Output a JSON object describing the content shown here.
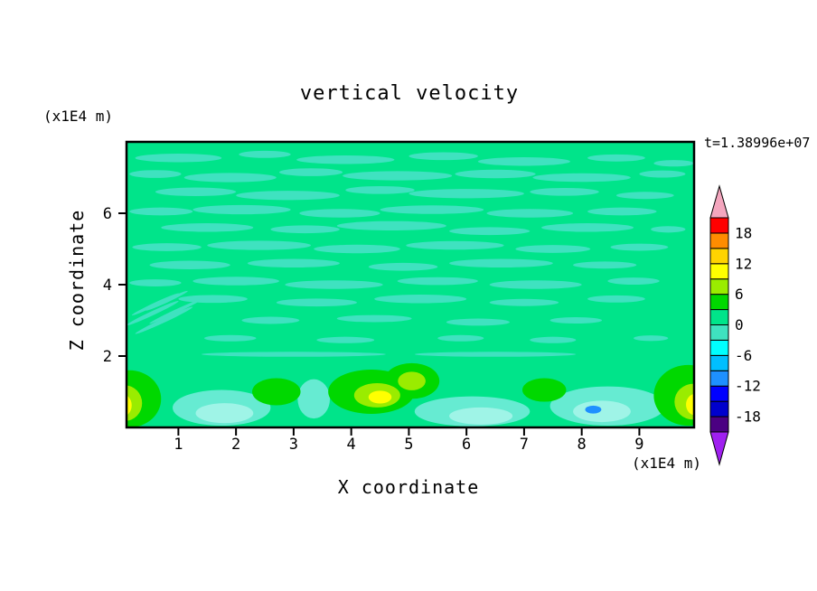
{
  "page": {
    "background_color": "#FFFFFF"
  },
  "chart_data": {
    "type": "contour",
    "title": "vertical velocity",
    "time_annotation": "t=1.38996e+07",
    "x": {
      "label": "X coordinate",
      "unit": "(x1E4 m)",
      "range": [
        0.1,
        9.95
      ],
      "ticks": [
        1,
        2,
        3,
        4,
        5,
        6,
        7,
        8,
        9
      ]
    },
    "z": {
      "label": "Z coordinate",
      "unit": "(x1E4 m)",
      "range": [
        0,
        8
      ],
      "ticks": [
        2,
        4,
        6
      ]
    },
    "grid": false,
    "legend_position": "right-colorbar",
    "levels": [
      -21,
      -18,
      -15,
      -12,
      -9,
      -6,
      -3,
      0,
      3,
      6,
      9,
      12,
      15,
      18,
      21
    ],
    "band_colors_bottom_to_top": [
      "#4B0082",
      "#0000CD",
      "#0000FF",
      "#1E90FF",
      "#00BFFF",
      "#00FFFF",
      "#3FE2C0",
      "#00E48A",
      "#00D800",
      "#9AEC00",
      "#FFFF00",
      "#FFD300",
      "#FF8C00",
      "#FF0000"
    ],
    "under_arrow_color": "#A020F0",
    "over_arrow_color": "#F4A6BE",
    "colorbar_tick_labels": [
      "18",
      "12",
      "6",
      "0",
      "-6",
      "-12",
      "-18"
    ],
    "background_band": {
      "value_range": [
        0,
        3
      ],
      "color": "#00E48A"
    },
    "streak_band": {
      "value_range": [
        -3,
        0
      ],
      "color": "#3FE2C0"
    },
    "field_summary": "Interior (z from about 2 to 8) dominated by values in the 0-3 band with thin -3-0 turquoise streaks; boundary layer below z of about 2 contains updraft cores reaching the 9-12 yellow band near x of 0, 4.5, 5.0 and 10, and downdraft patches reaching about -6 to -9 (cyan / blue spot) near x of 1.8, 6.2 and 8.2",
    "streaks": [
      [
        1.0,
        7.55,
        0.75,
        0.12
      ],
      [
        2.5,
        7.65,
        0.45,
        0.1
      ],
      [
        3.9,
        7.5,
        0.85,
        0.12
      ],
      [
        5.6,
        7.6,
        0.6,
        0.11
      ],
      [
        7.0,
        7.45,
        0.8,
        0.12
      ],
      [
        8.6,
        7.55,
        0.5,
        0.1
      ],
      [
        9.6,
        7.4,
        0.35,
        0.09
      ],
      [
        0.6,
        7.1,
        0.45,
        0.11
      ],
      [
        1.9,
        7.0,
        0.8,
        0.13
      ],
      [
        3.3,
        7.15,
        0.55,
        0.11
      ],
      [
        4.8,
        7.05,
        0.95,
        0.13
      ],
      [
        6.5,
        7.1,
        0.7,
        0.12
      ],
      [
        8.0,
        7.0,
        0.85,
        0.12
      ],
      [
        9.4,
        7.1,
        0.4,
        0.1
      ],
      [
        1.3,
        6.6,
        0.7,
        0.12
      ],
      [
        2.9,
        6.5,
        0.9,
        0.13
      ],
      [
        4.5,
        6.65,
        0.6,
        0.11
      ],
      [
        6.0,
        6.55,
        1.0,
        0.13
      ],
      [
        7.7,
        6.6,
        0.6,
        0.11
      ],
      [
        9.1,
        6.5,
        0.5,
        0.1
      ],
      [
        0.7,
        6.05,
        0.55,
        0.11
      ],
      [
        2.1,
        6.1,
        0.85,
        0.13
      ],
      [
        3.8,
        6.0,
        0.7,
        0.12
      ],
      [
        5.4,
        6.1,
        0.9,
        0.12
      ],
      [
        7.1,
        6.0,
        0.75,
        0.12
      ],
      [
        8.7,
        6.05,
        0.6,
        0.11
      ],
      [
        1.5,
        5.6,
        0.8,
        0.12
      ],
      [
        3.2,
        5.55,
        0.6,
        0.11
      ],
      [
        4.7,
        5.65,
        0.95,
        0.13
      ],
      [
        6.4,
        5.5,
        0.7,
        0.11
      ],
      [
        8.1,
        5.6,
        0.8,
        0.12
      ],
      [
        9.5,
        5.55,
        0.3,
        0.09
      ],
      [
        0.8,
        5.05,
        0.6,
        0.11
      ],
      [
        2.4,
        5.1,
        0.9,
        0.13
      ],
      [
        4.1,
        5.0,
        0.75,
        0.12
      ],
      [
        5.8,
        5.1,
        0.85,
        0.12
      ],
      [
        7.5,
        5.0,
        0.65,
        0.11
      ],
      [
        9.0,
        5.05,
        0.5,
        0.1
      ],
      [
        1.2,
        4.55,
        0.7,
        0.12
      ],
      [
        3.0,
        4.6,
        0.8,
        0.12
      ],
      [
        4.9,
        4.5,
        0.6,
        0.11
      ],
      [
        6.6,
        4.6,
        0.9,
        0.12
      ],
      [
        8.4,
        4.55,
        0.55,
        0.1
      ],
      [
        0.6,
        4.05,
        0.45,
        0.1
      ],
      [
        2.0,
        4.1,
        0.75,
        0.12
      ],
      [
        3.7,
        4.0,
        0.85,
        0.12
      ],
      [
        5.5,
        4.1,
        0.7,
        0.11
      ],
      [
        7.2,
        4.0,
        0.8,
        0.12
      ],
      [
        8.9,
        4.1,
        0.45,
        0.1
      ],
      [
        1.6,
        3.6,
        0.6,
        0.11
      ],
      [
        3.4,
        3.5,
        0.7,
        0.11
      ],
      [
        5.2,
        3.6,
        0.8,
        0.12
      ],
      [
        7.0,
        3.5,
        0.6,
        0.1
      ],
      [
        8.6,
        3.6,
        0.5,
        0.1
      ],
      [
        2.6,
        3.0,
        0.5,
        0.1
      ],
      [
        4.4,
        3.05,
        0.65,
        0.1
      ],
      [
        6.2,
        2.95,
        0.55,
        0.1
      ],
      [
        7.9,
        3.0,
        0.45,
        0.09
      ],
      [
        1.9,
        2.5,
        0.45,
        0.09
      ],
      [
        3.9,
        2.45,
        0.5,
        0.09
      ],
      [
        5.9,
        2.5,
        0.4,
        0.09
      ],
      [
        7.5,
        2.45,
        0.4,
        0.09
      ],
      [
        9.2,
        2.5,
        0.3,
        0.08
      ],
      [
        3.0,
        2.05,
        1.6,
        0.07
      ],
      [
        6.5,
        2.05,
        1.4,
        0.07
      ],
      [
        0.55,
        3.2,
        0.5,
        0.06,
        -25
      ],
      [
        0.75,
        3.0,
        0.55,
        0.06,
        -25
      ],
      [
        0.6,
        3.45,
        0.45,
        0.05,
        -25
      ],
      [
        0.95,
        3.25,
        0.5,
        0.05,
        -25
      ],
      [
        0.8,
        3.55,
        0.4,
        0.05,
        -25
      ]
    ],
    "features": [
      {
        "x": 1.75,
        "z": 0.55,
        "rx": 0.85,
        "rz": 0.5,
        "color": "#66EBD2",
        "band": [
          -3,
          0
        ]
      },
      {
        "x": 3.35,
        "z": 0.8,
        "rx": 0.28,
        "rz": 0.55,
        "color": "#66EBD2",
        "band": [
          -3,
          0
        ]
      },
      {
        "x": 6.1,
        "z": 0.45,
        "rx": 1.0,
        "rz": 0.42,
        "color": "#66EBD2",
        "band": [
          -3,
          0
        ]
      },
      {
        "x": 8.45,
        "z": 0.6,
        "rx": 1.0,
        "rz": 0.55,
        "color": "#66EBD2",
        "band": [
          -3,
          0
        ]
      },
      {
        "x": 1.8,
        "z": 0.4,
        "rx": 0.5,
        "rz": 0.28,
        "color": "#9FF4E7",
        "band": [
          -6,
          -3
        ]
      },
      {
        "x": 6.25,
        "z": 0.32,
        "rx": 0.55,
        "rz": 0.24,
        "color": "#9FF4E7",
        "band": [
          -6,
          -3
        ]
      },
      {
        "x": 8.35,
        "z": 0.45,
        "rx": 0.5,
        "rz": 0.3,
        "color": "#9FF4E7",
        "band": [
          -6,
          -3
        ]
      },
      {
        "x": 8.2,
        "z": 0.5,
        "rx": 0.14,
        "rz": 0.11,
        "color": "#1E90FF",
        "band": [
          -12,
          -9
        ]
      },
      {
        "x": 0.15,
        "z": 0.8,
        "rx": 0.55,
        "rz": 0.8,
        "color": "#00D800",
        "band": [
          3,
          6
        ]
      },
      {
        "x": 2.7,
        "z": 1.0,
        "rx": 0.42,
        "rz": 0.38,
        "color": "#00D800",
        "band": [
          3,
          6
        ]
      },
      {
        "x": 4.35,
        "z": 1.0,
        "rx": 0.75,
        "rz": 0.62,
        "color": "#00D800",
        "band": [
          3,
          6
        ]
      },
      {
        "x": 5.05,
        "z": 1.3,
        "rx": 0.48,
        "rz": 0.5,
        "color": "#00D800",
        "band": [
          3,
          6
        ]
      },
      {
        "x": 7.35,
        "z": 1.05,
        "rx": 0.38,
        "rz": 0.33,
        "color": "#00D800",
        "band": [
          3,
          6
        ]
      },
      {
        "x": 9.85,
        "z": 0.9,
        "rx": 0.6,
        "rz": 0.85,
        "color": "#00D800",
        "band": [
          3,
          6
        ]
      },
      {
        "x": 0.07,
        "z": 0.68,
        "rx": 0.3,
        "rz": 0.5,
        "color": "#9AEC00",
        "band": [
          6,
          9
        ]
      },
      {
        "x": 4.45,
        "z": 0.9,
        "rx": 0.4,
        "rz": 0.34,
        "color": "#9AEC00",
        "band": [
          6,
          9
        ]
      },
      {
        "x": 5.05,
        "z": 1.3,
        "rx": 0.24,
        "rz": 0.26,
        "color": "#9AEC00",
        "band": [
          6,
          9
        ]
      },
      {
        "x": 9.93,
        "z": 0.72,
        "rx": 0.32,
        "rz": 0.5,
        "color": "#9AEC00",
        "band": [
          6,
          9
        ]
      },
      {
        "x": 0.02,
        "z": 0.62,
        "rx": 0.17,
        "rz": 0.32,
        "color": "#FFFF00",
        "band": [
          9,
          12
        ]
      },
      {
        "x": 4.5,
        "z": 0.85,
        "rx": 0.2,
        "rz": 0.18,
        "color": "#FFFF00",
        "band": [
          9,
          12
        ]
      },
      {
        "x": 9.97,
        "z": 0.64,
        "rx": 0.16,
        "rz": 0.3,
        "color": "#FFFF00",
        "band": [
          9,
          12
        ]
      }
    ]
  }
}
